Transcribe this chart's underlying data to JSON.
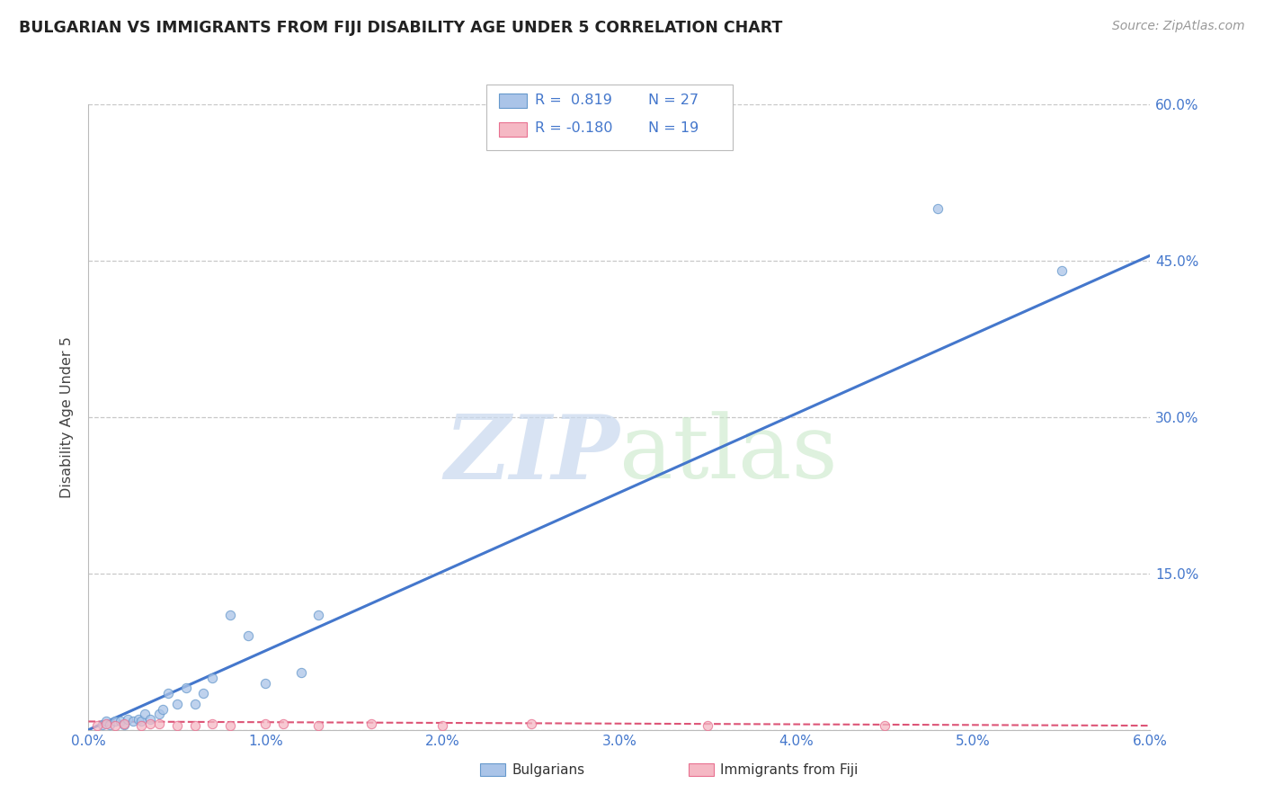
{
  "title": "BULGARIAN VS IMMIGRANTS FROM FIJI DISABILITY AGE UNDER 5 CORRELATION CHART",
  "source": "Source: ZipAtlas.com",
  "ylabel": "Disability Age Under 5",
  "xlim": [
    0.0,
    0.06
  ],
  "ylim": [
    0.0,
    0.6
  ],
  "xticks": [
    0.0,
    0.01,
    0.02,
    0.03,
    0.04,
    0.05,
    0.06
  ],
  "xtick_labels": [
    "0.0%",
    "1.0%",
    "2.0%",
    "3.0%",
    "4.0%",
    "5.0%",
    "6.0%"
  ],
  "yticks": [
    0.0,
    0.15,
    0.3,
    0.45,
    0.6
  ],
  "ytick_labels_right": [
    "",
    "15.0%",
    "30.0%",
    "45.0%",
    "60.0%"
  ],
  "grid_color": "#c8c8c8",
  "background_color": "#ffffff",
  "legend_r1": "R =  0.819",
  "legend_n1": "N = 27",
  "legend_r2": "R = -0.180",
  "legend_n2": "N = 19",
  "blue_color": "#aac4e8",
  "blue_edge_color": "#6699cc",
  "blue_line_color": "#4477cc",
  "pink_color": "#f5b8c4",
  "pink_edge_color": "#e87090",
  "pink_line_color": "#dd5577",
  "tick_label_color": "#4477cc",
  "blue_scatter_x": [
    0.0008,
    0.001,
    0.0012,
    0.0015,
    0.0018,
    0.002,
    0.0022,
    0.0025,
    0.0028,
    0.003,
    0.0032,
    0.0035,
    0.004,
    0.0042,
    0.0045,
    0.005,
    0.0055,
    0.006,
    0.0065,
    0.007,
    0.008,
    0.009,
    0.01,
    0.012,
    0.013,
    0.048,
    0.055
  ],
  "blue_scatter_y": [
    0.005,
    0.008,
    0.005,
    0.008,
    0.008,
    0.005,
    0.01,
    0.008,
    0.01,
    0.008,
    0.015,
    0.01,
    0.015,
    0.02,
    0.035,
    0.025,
    0.04,
    0.025,
    0.035,
    0.05,
    0.11,
    0.09,
    0.045,
    0.055,
    0.11,
    0.5,
    0.44
  ],
  "pink_scatter_x": [
    0.0005,
    0.001,
    0.0015,
    0.002,
    0.003,
    0.0035,
    0.004,
    0.005,
    0.006,
    0.007,
    0.008,
    0.01,
    0.011,
    0.013,
    0.016,
    0.02,
    0.025,
    0.035,
    0.045
  ],
  "pink_scatter_y": [
    0.004,
    0.006,
    0.004,
    0.006,
    0.004,
    0.006,
    0.006,
    0.004,
    0.004,
    0.006,
    0.004,
    0.006,
    0.006,
    0.004,
    0.006,
    0.004,
    0.006,
    0.004,
    0.004
  ],
  "blue_trendline_x": [
    0.0,
    0.06
  ],
  "blue_trendline_y": [
    0.0,
    0.455
  ],
  "pink_trendline_x": [
    0.0,
    0.06
  ],
  "pink_trendline_y": [
    0.008,
    0.004
  ]
}
